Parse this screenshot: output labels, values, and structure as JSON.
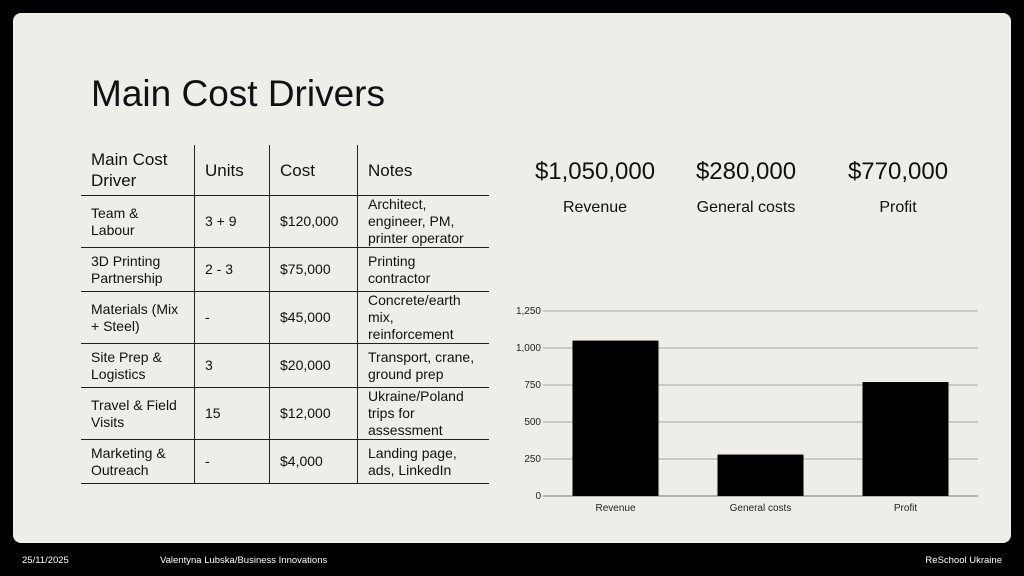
{
  "title": "Main Cost Drivers",
  "table": {
    "headers": [
      "Main Cost Driver",
      "Units",
      "Cost",
      "Notes"
    ],
    "rows": [
      {
        "driver": "Team & Labour",
        "units": "3 + 9",
        "cost": "$120,000",
        "notes": "Architect, engineer, PM, printer operator"
      },
      {
        "driver": "3D Printing Partnership",
        "units": "2 - 3",
        "cost": "$75,000",
        "notes": "Printing contractor"
      },
      {
        "driver": "Materials (Mix + Steel)",
        "units": "-",
        "cost": "$45,000",
        "notes": "Concrete/earth mix, reinforcement"
      },
      {
        "driver": "Site Prep & Logistics",
        "units": "3",
        "cost": "$20,000",
        "notes": "Transport, crane, ground prep"
      },
      {
        "driver": "Travel & Field Visits",
        "units": "15",
        "cost": "$12,000",
        "notes": "Ukraine/Poland trips for assessment"
      },
      {
        "driver": "Marketing & Outreach",
        "units": "-",
        "cost": "$4,000",
        "notes": "Landing page, ads, LinkedIn"
      }
    ]
  },
  "kpis": [
    {
      "value": "$1,050,000",
      "label": "Revenue"
    },
    {
      "value": "$280,000",
      "label": "General costs"
    },
    {
      "value": "$770,000",
      "label": "Profit"
    }
  ],
  "chart_data": {
    "type": "bar",
    "categories": [
      "Revenue",
      "General costs",
      "Profit"
    ],
    "values": [
      1050,
      280,
      770
    ],
    "title": "",
    "xlabel": "",
    "ylabel": "",
    "ylim": [
      0,
      1250
    ],
    "yticks": [
      0,
      250,
      500,
      750,
      1000,
      1250
    ],
    "ytick_labels": [
      "0",
      "250",
      "500",
      "750",
      "1,000",
      "1,250"
    ],
    "grid": true,
    "bar_color": "#000000"
  },
  "footer": {
    "date": "25/11/2025",
    "author": "Valentyna Lubska/Business Innovations",
    "org": "ReSchool Ukraine"
  }
}
